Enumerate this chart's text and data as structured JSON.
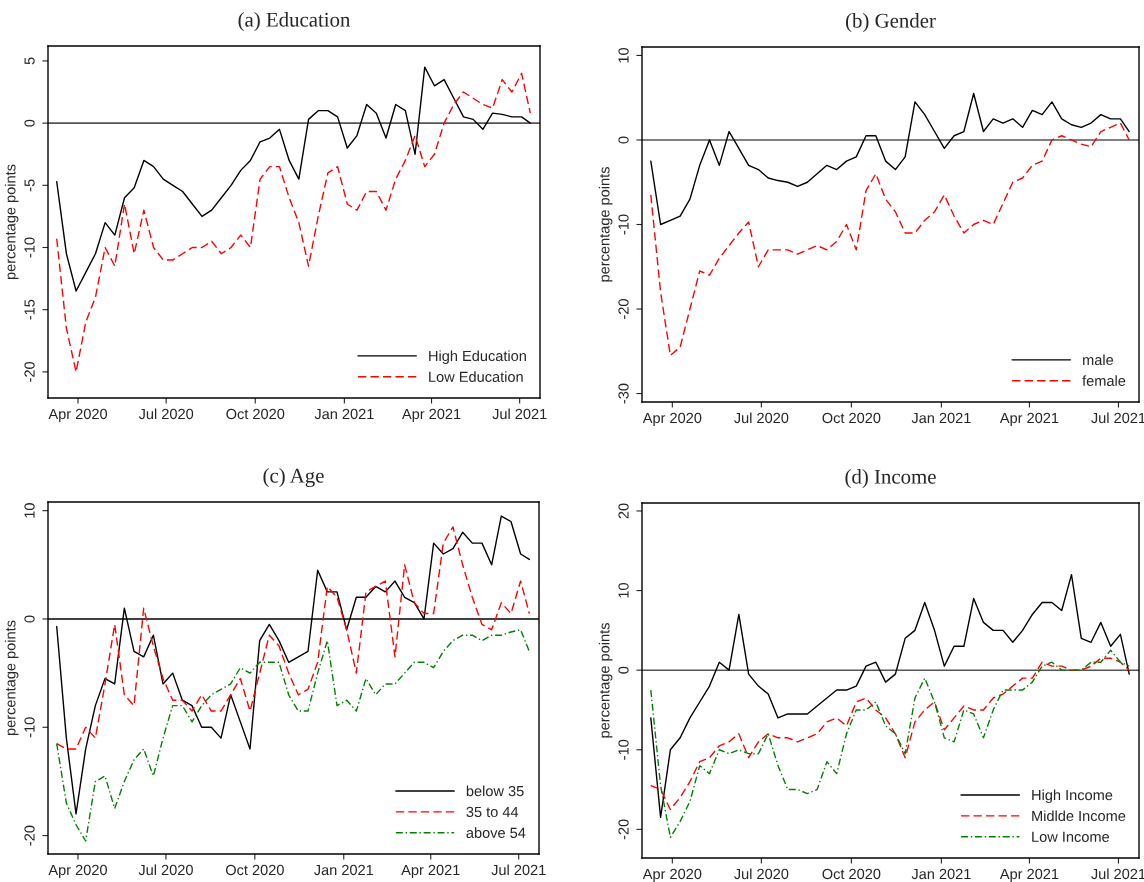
{
  "chart_data": [
    {
      "type": "line",
      "title": "(a) Education",
      "ylabel": "percentage points",
      "legend": "bottom right",
      "grid": false,
      "x": [
        "2020-03-10",
        "2020-03-20",
        "2020-03-30",
        "2020-04-09",
        "2020-04-19",
        "2020-04-29",
        "2020-05-09",
        "2020-05-19",
        "2020-05-29",
        "2020-06-08",
        "2020-06-18",
        "2020-06-28",
        "2020-07-08",
        "2020-07-18",
        "2020-07-28",
        "2020-08-07",
        "2020-08-17",
        "2020-08-27",
        "2020-09-06",
        "2020-09-16",
        "2020-09-26",
        "2020-10-06",
        "2020-10-16",
        "2020-10-26",
        "2020-11-05",
        "2020-11-15",
        "2020-11-25",
        "2020-12-05",
        "2020-12-15",
        "2020-12-25",
        "2021-01-04",
        "2021-01-14",
        "2021-01-24",
        "2021-02-03",
        "2021-02-13",
        "2021-02-23",
        "2021-03-05",
        "2021-03-15",
        "2021-03-25",
        "2021-04-04",
        "2021-04-14",
        "2021-04-24",
        "2021-05-04",
        "2021-05-14",
        "2021-05-24",
        "2021-06-03",
        "2021-06-13",
        "2021-06-23",
        "2021-07-03",
        "2021-07-12"
      ],
      "xlim": [
        "2020-03-01",
        "2021-07-22"
      ],
      "xticks": [
        {
          "value": "2020-04-01",
          "label": "Apr 2020"
        },
        {
          "value": "2020-07-01",
          "label": "Jul 2020"
        },
        {
          "value": "2020-10-01",
          "label": "Oct 2020"
        },
        {
          "value": "2021-01-01",
          "label": "Jan 2021"
        },
        {
          "value": "2021-04-01",
          "label": "Apr 2021"
        },
        {
          "value": "2021-07-01",
          "label": "Jul 2021"
        }
      ],
      "ylim": [
        -22.1,
        6.2
      ],
      "yticks": [
        -20,
        -15,
        -10,
        -5,
        0,
        5
      ],
      "ref_lines": [
        {
          "axis": "y",
          "value": 0,
          "color": "#555555"
        }
      ],
      "series": [
        {
          "name": "High Education",
          "color": "#000000",
          "line_style": "solid",
          "values": [
            -4.7,
            -10.5,
            -13.5,
            -12,
            -10.5,
            -8,
            -9,
            -6,
            -5.2,
            -3,
            -3.5,
            -4.5,
            -5,
            -5.5,
            -6.5,
            -7.5,
            -7,
            -6,
            -5,
            -3.8,
            -3,
            -1.5,
            -1.2,
            -0.5,
            -3,
            -4.5,
            0.3,
            1,
            1,
            0.5,
            -2,
            -1,
            1.5,
            0.8,
            -1.2,
            1.5,
            1,
            -2.5,
            4.5,
            3,
            3.5,
            2,
            0.5,
            0.3,
            -0.5,
            0.8,
            0.7,
            0.5,
            0.5,
            0
          ]
        },
        {
          "name": "Low Education",
          "color": "#ff0000",
          "line_style": "dashed",
          "values": [
            -9.3,
            -16.5,
            -20,
            -16,
            -14,
            -10,
            -11.5,
            -6.5,
            -10.5,
            -7,
            -10,
            -11,
            -11,
            -10.5,
            -10,
            -10,
            -9.5,
            -10.5,
            -10,
            -9,
            -10,
            -4.5,
            -3.5,
            -3.5,
            -6,
            -8,
            -11.5,
            -7.5,
            -4,
            -3.5,
            -6.5,
            -7,
            -5.5,
            -5.5,
            -7,
            -4.5,
            -3,
            -1,
            -3.5,
            -2.5,
            0,
            1.5,
            2.5,
            2,
            1.5,
            1.2,
            3.5,
            2.5,
            4,
            0.8
          ]
        }
      ]
    },
    {
      "type": "line",
      "title": "(b) Gender",
      "ylabel": "percentage points",
      "legend": "bottom right",
      "grid": false,
      "x": [
        "2020-03-10",
        "2020-03-20",
        "2020-03-30",
        "2020-04-09",
        "2020-04-19",
        "2020-04-29",
        "2020-05-09",
        "2020-05-19",
        "2020-05-29",
        "2020-06-08",
        "2020-06-18",
        "2020-06-28",
        "2020-07-08",
        "2020-07-18",
        "2020-07-28",
        "2020-08-07",
        "2020-08-17",
        "2020-08-27",
        "2020-09-06",
        "2020-09-16",
        "2020-09-26",
        "2020-10-06",
        "2020-10-16",
        "2020-10-26",
        "2020-11-05",
        "2020-11-15",
        "2020-11-25",
        "2020-12-05",
        "2020-12-15",
        "2020-12-25",
        "2021-01-04",
        "2021-01-14",
        "2021-01-24",
        "2021-02-03",
        "2021-02-13",
        "2021-02-23",
        "2021-03-05",
        "2021-03-15",
        "2021-03-25",
        "2021-04-04",
        "2021-04-14",
        "2021-04-24",
        "2021-05-04",
        "2021-05-14",
        "2021-05-24",
        "2021-06-03",
        "2021-06-13",
        "2021-06-23",
        "2021-07-03",
        "2021-07-12"
      ],
      "xlim": [
        "2020-03-01",
        "2021-07-22"
      ],
      "xticks": [
        {
          "value": "2020-04-01",
          "label": "Apr 2020"
        },
        {
          "value": "2020-07-01",
          "label": "Jul 2020"
        },
        {
          "value": "2020-10-01",
          "label": "Oct 2020"
        },
        {
          "value": "2021-01-01",
          "label": "Jan 2021"
        },
        {
          "value": "2021-04-01",
          "label": "Apr 2021"
        },
        {
          "value": "2021-07-01",
          "label": "Jul 2021"
        }
      ],
      "ylim": [
        -31,
        11
      ],
      "yticks": [
        -30,
        -20,
        -10,
        0,
        10
      ],
      "ref_lines": [
        {
          "axis": "y",
          "value": 0,
          "color": "#555555"
        }
      ],
      "series": [
        {
          "name": "male",
          "color": "#000000",
          "line_style": "solid",
          "values": [
            -2.5,
            -10,
            -9.5,
            -9,
            -7,
            -3,
            0,
            -3,
            1,
            -1,
            -3,
            -3.5,
            -4.5,
            -4.8,
            -5,
            -5.5,
            -5,
            -4,
            -3,
            -3.5,
            -2.5,
            -2,
            0.5,
            0.5,
            -2.5,
            -3.5,
            -2,
            4.5,
            3,
            1,
            -1,
            0.5,
            1,
            5.5,
            1,
            2.5,
            2,
            2.5,
            1.5,
            3.5,
            3,
            4.5,
            2.5,
            1.8,
            1.5,
            2,
            3,
            2.5,
            2.5,
            1
          ]
        },
        {
          "name": "female",
          "color": "#ff0000",
          "line_style": "dashed",
          "values": [
            -6.5,
            -18,
            -25.5,
            -24.5,
            -20,
            -15.5,
            -16,
            -14,
            -12.5,
            -11,
            -9.7,
            -15,
            -13,
            -13,
            -13,
            -13.5,
            -13,
            -12.5,
            -13,
            -12,
            -10,
            -13,
            -6,
            -4,
            -7,
            -8.5,
            -11,
            -11,
            -9.5,
            -8.5,
            -6.5,
            -9,
            -11,
            -10,
            -9.5,
            -10,
            -7.5,
            -5,
            -4.5,
            -3,
            -2.5,
            0,
            0.5,
            0,
            -0.5,
            -0.8,
            1,
            1.5,
            2,
            0
          ]
        }
      ]
    },
    {
      "type": "line",
      "title": "(c) Age",
      "ylabel": "percentage points",
      "legend": "bottom right",
      "grid": false,
      "x": [
        "2020-03-10",
        "2020-03-20",
        "2020-03-30",
        "2020-04-09",
        "2020-04-19",
        "2020-04-29",
        "2020-05-09",
        "2020-05-19",
        "2020-05-29",
        "2020-06-08",
        "2020-06-18",
        "2020-06-28",
        "2020-07-08",
        "2020-07-18",
        "2020-07-28",
        "2020-08-07",
        "2020-08-17",
        "2020-08-27",
        "2020-09-06",
        "2020-09-16",
        "2020-09-26",
        "2020-10-06",
        "2020-10-16",
        "2020-10-26",
        "2020-11-05",
        "2020-11-15",
        "2020-11-25",
        "2020-12-05",
        "2020-12-15",
        "2020-12-25",
        "2021-01-04",
        "2021-01-14",
        "2021-01-24",
        "2021-02-03",
        "2021-02-13",
        "2021-02-23",
        "2021-03-05",
        "2021-03-15",
        "2021-03-25",
        "2021-04-04",
        "2021-04-14",
        "2021-04-24",
        "2021-05-04",
        "2021-05-14",
        "2021-05-24",
        "2021-06-03",
        "2021-06-13",
        "2021-06-23",
        "2021-07-03",
        "2021-07-12"
      ],
      "xlim": [
        "2020-03-01",
        "2021-07-22"
      ],
      "xticks": [
        {
          "value": "2020-04-01",
          "label": "Apr 2020"
        },
        {
          "value": "2020-07-01",
          "label": "Jul 2020"
        },
        {
          "value": "2020-10-01",
          "label": "Oct 2020"
        },
        {
          "value": "2021-01-01",
          "label": "Jan 2021"
        },
        {
          "value": "2021-04-01",
          "label": "Apr 2021"
        },
        {
          "value": "2021-07-01",
          "label": "Jul 2021"
        }
      ],
      "ylim": [
        -21.7,
        10.8
      ],
      "yticks": [
        -20,
        -10,
        0,
        10
      ],
      "ref_lines": [
        {
          "axis": "y",
          "value": 0,
          "color": "#000000"
        }
      ],
      "series": [
        {
          "name": "below 35",
          "color": "#000000",
          "line_style": "solid",
          "values": [
            -0.7,
            -11,
            -18,
            -12,
            -8,
            -5.5,
            -6,
            1,
            -3,
            -3.5,
            -1.5,
            -6,
            -5,
            -7.5,
            -8,
            -10,
            -10,
            -11,
            -7,
            -9.5,
            -12,
            -2,
            -0.5,
            -2,
            -4,
            -3.5,
            -3,
            4.5,
            2.5,
            2.5,
            -1,
            2,
            2,
            3,
            2.5,
            3.5,
            2,
            1.5,
            0,
            7,
            6,
            6.5,
            8,
            7,
            7,
            5,
            9.5,
            9,
            6,
            5.5
          ]
        },
        {
          "name": "35 to 44",
          "color": "#ff0000",
          "line_style": "dashed",
          "values": [
            -11.5,
            -12,
            -12,
            -10,
            -11,
            -6,
            -0.5,
            -7,
            -8,
            1,
            -2.5,
            -5.5,
            -7.5,
            -7.5,
            -8.5,
            -7,
            -8.5,
            -8.5,
            -7,
            -5.5,
            -8.5,
            -5,
            -1.5,
            -2.5,
            -5,
            -7,
            -6.5,
            -4,
            3,
            2,
            -1,
            -5,
            2.5,
            3,
            3.5,
            -3.5,
            5,
            1.5,
            0.5,
            0.5,
            7,
            8.5,
            5,
            2,
            -0.5,
            -1,
            1.5,
            0.5,
            3.5,
            0.5
          ]
        },
        {
          "name": "above 54",
          "color": "#008000",
          "line_style": "dashdot",
          "values": [
            -11.5,
            -17,
            -19,
            -20.5,
            -15,
            -14.5,
            -17.5,
            -15,
            -13,
            -12,
            -14.5,
            -11,
            -8,
            -8,
            -9.5,
            -8,
            -7,
            -6.5,
            -6,
            -4.5,
            -5,
            -4,
            -4,
            -4,
            -7,
            -8.5,
            -8.5,
            -5,
            -2,
            -8,
            -7.5,
            -8.5,
            -5.5,
            -7,
            -6,
            -6,
            -5,
            -4,
            -4,
            -4.5,
            -3,
            -2,
            -1.5,
            -1.5,
            -2,
            -1.5,
            -1.5,
            -1.2,
            -1,
            -3
          ]
        }
      ]
    },
    {
      "type": "line",
      "title": "(d) Income",
      "ylabel": "percentage points",
      "legend": "bottom right",
      "grid": false,
      "x": [
        "2020-03-10",
        "2020-03-20",
        "2020-03-30",
        "2020-04-09",
        "2020-04-19",
        "2020-04-29",
        "2020-05-09",
        "2020-05-19",
        "2020-05-29",
        "2020-06-08",
        "2020-06-18",
        "2020-06-28",
        "2020-07-08",
        "2020-07-18",
        "2020-07-28",
        "2020-08-07",
        "2020-08-17",
        "2020-08-27",
        "2020-09-06",
        "2020-09-16",
        "2020-09-26",
        "2020-10-06",
        "2020-10-16",
        "2020-10-26",
        "2020-11-05",
        "2020-11-15",
        "2020-11-25",
        "2020-12-05",
        "2020-12-15",
        "2020-12-25",
        "2021-01-04",
        "2021-01-14",
        "2021-01-24",
        "2021-02-03",
        "2021-02-13",
        "2021-02-23",
        "2021-03-05",
        "2021-03-15",
        "2021-03-25",
        "2021-04-04",
        "2021-04-14",
        "2021-04-24",
        "2021-05-04",
        "2021-05-14",
        "2021-05-24",
        "2021-06-03",
        "2021-06-13",
        "2021-06-23",
        "2021-07-03",
        "2021-07-12"
      ],
      "xlim": [
        "2020-03-01",
        "2021-07-22"
      ],
      "xticks": [
        {
          "value": "2020-04-01",
          "label": "Apr 2020"
        },
        {
          "value": "2020-07-01",
          "label": "Jul 2020"
        },
        {
          "value": "2020-10-01",
          "label": "Oct 2020"
        },
        {
          "value": "2021-01-01",
          "label": "Jan 2021"
        },
        {
          "value": "2021-04-01",
          "label": "Apr 2021"
        },
        {
          "value": "2021-07-01",
          "label": "Jul 2021"
        }
      ],
      "ylim": [
        -23.6,
        21
      ],
      "yticks": [
        -20,
        -10,
        0,
        10,
        20
      ],
      "ref_lines": [
        {
          "axis": "y",
          "value": 0,
          "color": "#555555"
        }
      ],
      "series": [
        {
          "name": "High Income",
          "color": "#000000",
          "line_style": "solid",
          "values": [
            -6,
            -18.5,
            -10,
            -8.5,
            -6,
            -4,
            -2,
            1,
            0,
            7,
            -0.5,
            -2,
            -3,
            -6,
            -5.5,
            -5.5,
            -5.5,
            -4.5,
            -3.5,
            -2.5,
            -2.5,
            -2,
            0.5,
            1,
            -1.5,
            -0.5,
            4,
            5,
            8.5,
            5,
            0.5,
            3,
            3,
            9,
            6,
            5,
            5,
            3.5,
            5,
            7,
            8.5,
            8.5,
            7.5,
            12,
            4,
            3.5,
            6,
            3,
            4.5,
            -0.5
          ]
        },
        {
          "name": "Midlde Income",
          "color": "#ff0000",
          "line_style": "dashed",
          "values": [
            -14.5,
            -15,
            -17.5,
            -16,
            -14,
            -11.5,
            -11,
            -9.5,
            -9,
            -8,
            -11,
            -9,
            -8,
            -8.5,
            -8.5,
            -9,
            -8.5,
            -8,
            -6.5,
            -6,
            -7,
            -4,
            -3.5,
            -5,
            -6,
            -8,
            -11,
            -6.5,
            -5,
            -4,
            -7.5,
            -6,
            -4.5,
            -5,
            -5,
            -3.5,
            -3,
            -2,
            -1,
            -1,
            1,
            0.5,
            0.5,
            0,
            0,
            0.5,
            1.5,
            1.5,
            1,
            0
          ]
        },
        {
          "name": "Low Income",
          "color": "#008000",
          "line_style": "dashdot",
          "values": [
            -2.5,
            -14.5,
            -21,
            -19,
            -16.5,
            -12,
            -13,
            -10,
            -10.5,
            -10,
            -10.5,
            -10.5,
            -8,
            -12,
            -15,
            -15,
            -15.5,
            -15,
            -11.5,
            -13,
            -8,
            -5,
            -5,
            -4,
            -7,
            -8,
            -10.5,
            -3.5,
            -1,
            -4,
            -8.5,
            -9,
            -5,
            -5.5,
            -8.5,
            -5,
            -2.5,
            -2.5,
            -2.5,
            -1.5,
            0.5,
            1,
            0,
            0,
            0,
            1,
            1,
            2.5,
            1,
            0.5
          ]
        }
      ]
    }
  ]
}
